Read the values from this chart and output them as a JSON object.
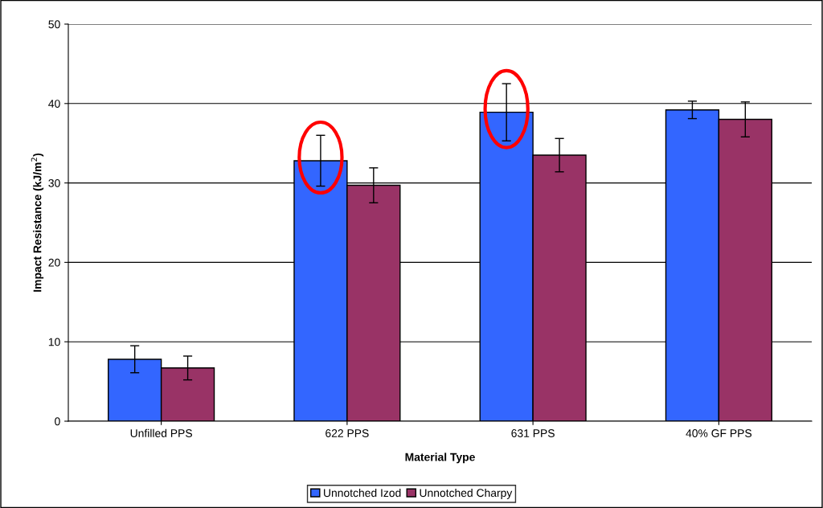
{
  "chart_data": {
    "type": "bar",
    "xlabel": "Material Type",
    "ylabel": "Impact Resistance (kJ/m$^{2}$)",
    "categories": [
      "Unfilled PPS",
      "622 PPS",
      "631 PPS",
      "40% GF PPS"
    ],
    "series": [
      {
        "name": "Unnotched Izod",
        "color": "#3366ff",
        "values": [
          7.8,
          32.8,
          38.9,
          39.2
        ],
        "errors": [
          1.7,
          3.2,
          3.6,
          1.1
        ]
      },
      {
        "name": "Unnotched Charpy",
        "color": "#993366",
        "values": [
          6.7,
          29.7,
          33.5,
          38.0
        ],
        "errors": [
          1.5,
          2.2,
          2.1,
          2.2
        ]
      }
    ],
    "ylim": [
      0,
      50
    ],
    "yticks": [
      0,
      10,
      20,
      30,
      40,
      50
    ],
    "grid": "y",
    "legend": "bottom"
  }
}
